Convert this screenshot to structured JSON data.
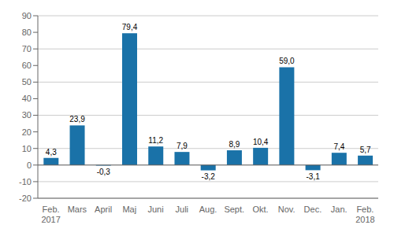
{
  "chart_data": {
    "type": "bar",
    "categories": [
      "Feb.\n2017",
      "Mars",
      "April",
      "Maj",
      "Juni",
      "Juli",
      "Aug.",
      "Sept.",
      "Okt.",
      "Nov.",
      "Dec.",
      "Jan.",
      "Feb.\n2018"
    ],
    "values": [
      4.3,
      23.9,
      -0.3,
      79.4,
      11.2,
      7.9,
      -3.2,
      8.9,
      10.4,
      59.0,
      -3.1,
      7.4,
      5.7
    ],
    "value_labels": [
      "4,3",
      "23,9",
      "-0,3",
      "79,4",
      "11,2",
      "7,9",
      "-3,2",
      "8,9",
      "10,4",
      "59,0",
      "-3,1",
      "7,4",
      "5,7"
    ],
    "color": "#1a72a8",
    "ylim": [
      -20,
      90
    ],
    "yticks": [
      -20,
      -10,
      0,
      10,
      20,
      30,
      40,
      50,
      60,
      70,
      80,
      90
    ],
    "grid": true,
    "data_labels": true
  }
}
